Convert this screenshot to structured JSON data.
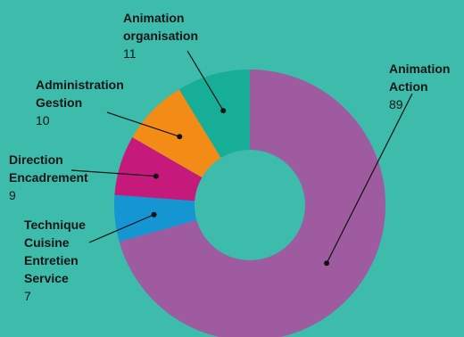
{
  "chart_data": {
    "type": "pie",
    "variant": "donut",
    "title": "",
    "slices": [
      {
        "name": "Animation Action",
        "value": 89,
        "color": "#9e5b9f"
      },
      {
        "name": "Technique Cuisine Entretien Service",
        "value": 7,
        "color": "#1695d3"
      },
      {
        "name": "Direction Encadrement",
        "value": 9,
        "color": "#c51a7c"
      },
      {
        "name": "Administration Gestion",
        "value": 10,
        "color": "#f28c16"
      },
      {
        "name": "Animation organisation",
        "value": 11,
        "color": "#16ae96"
      }
    ],
    "labels": {
      "action": {
        "line1": "Animation",
        "line2": "Action",
        "value": "89"
      },
      "technique": {
        "line1": "Technique",
        "line2": "Cuisine",
        "line3": "Entretien",
        "line4": "Service",
        "value": "7"
      },
      "direction": {
        "line1": "Direction",
        "line2": "Encadrement",
        "value": "9"
      },
      "administration": {
        "line1": "Administration",
        "line2": "Gestion",
        "value": "10"
      },
      "organisation": {
        "line1": "Animation",
        "line2": "organisation",
        "value": "11"
      }
    }
  }
}
